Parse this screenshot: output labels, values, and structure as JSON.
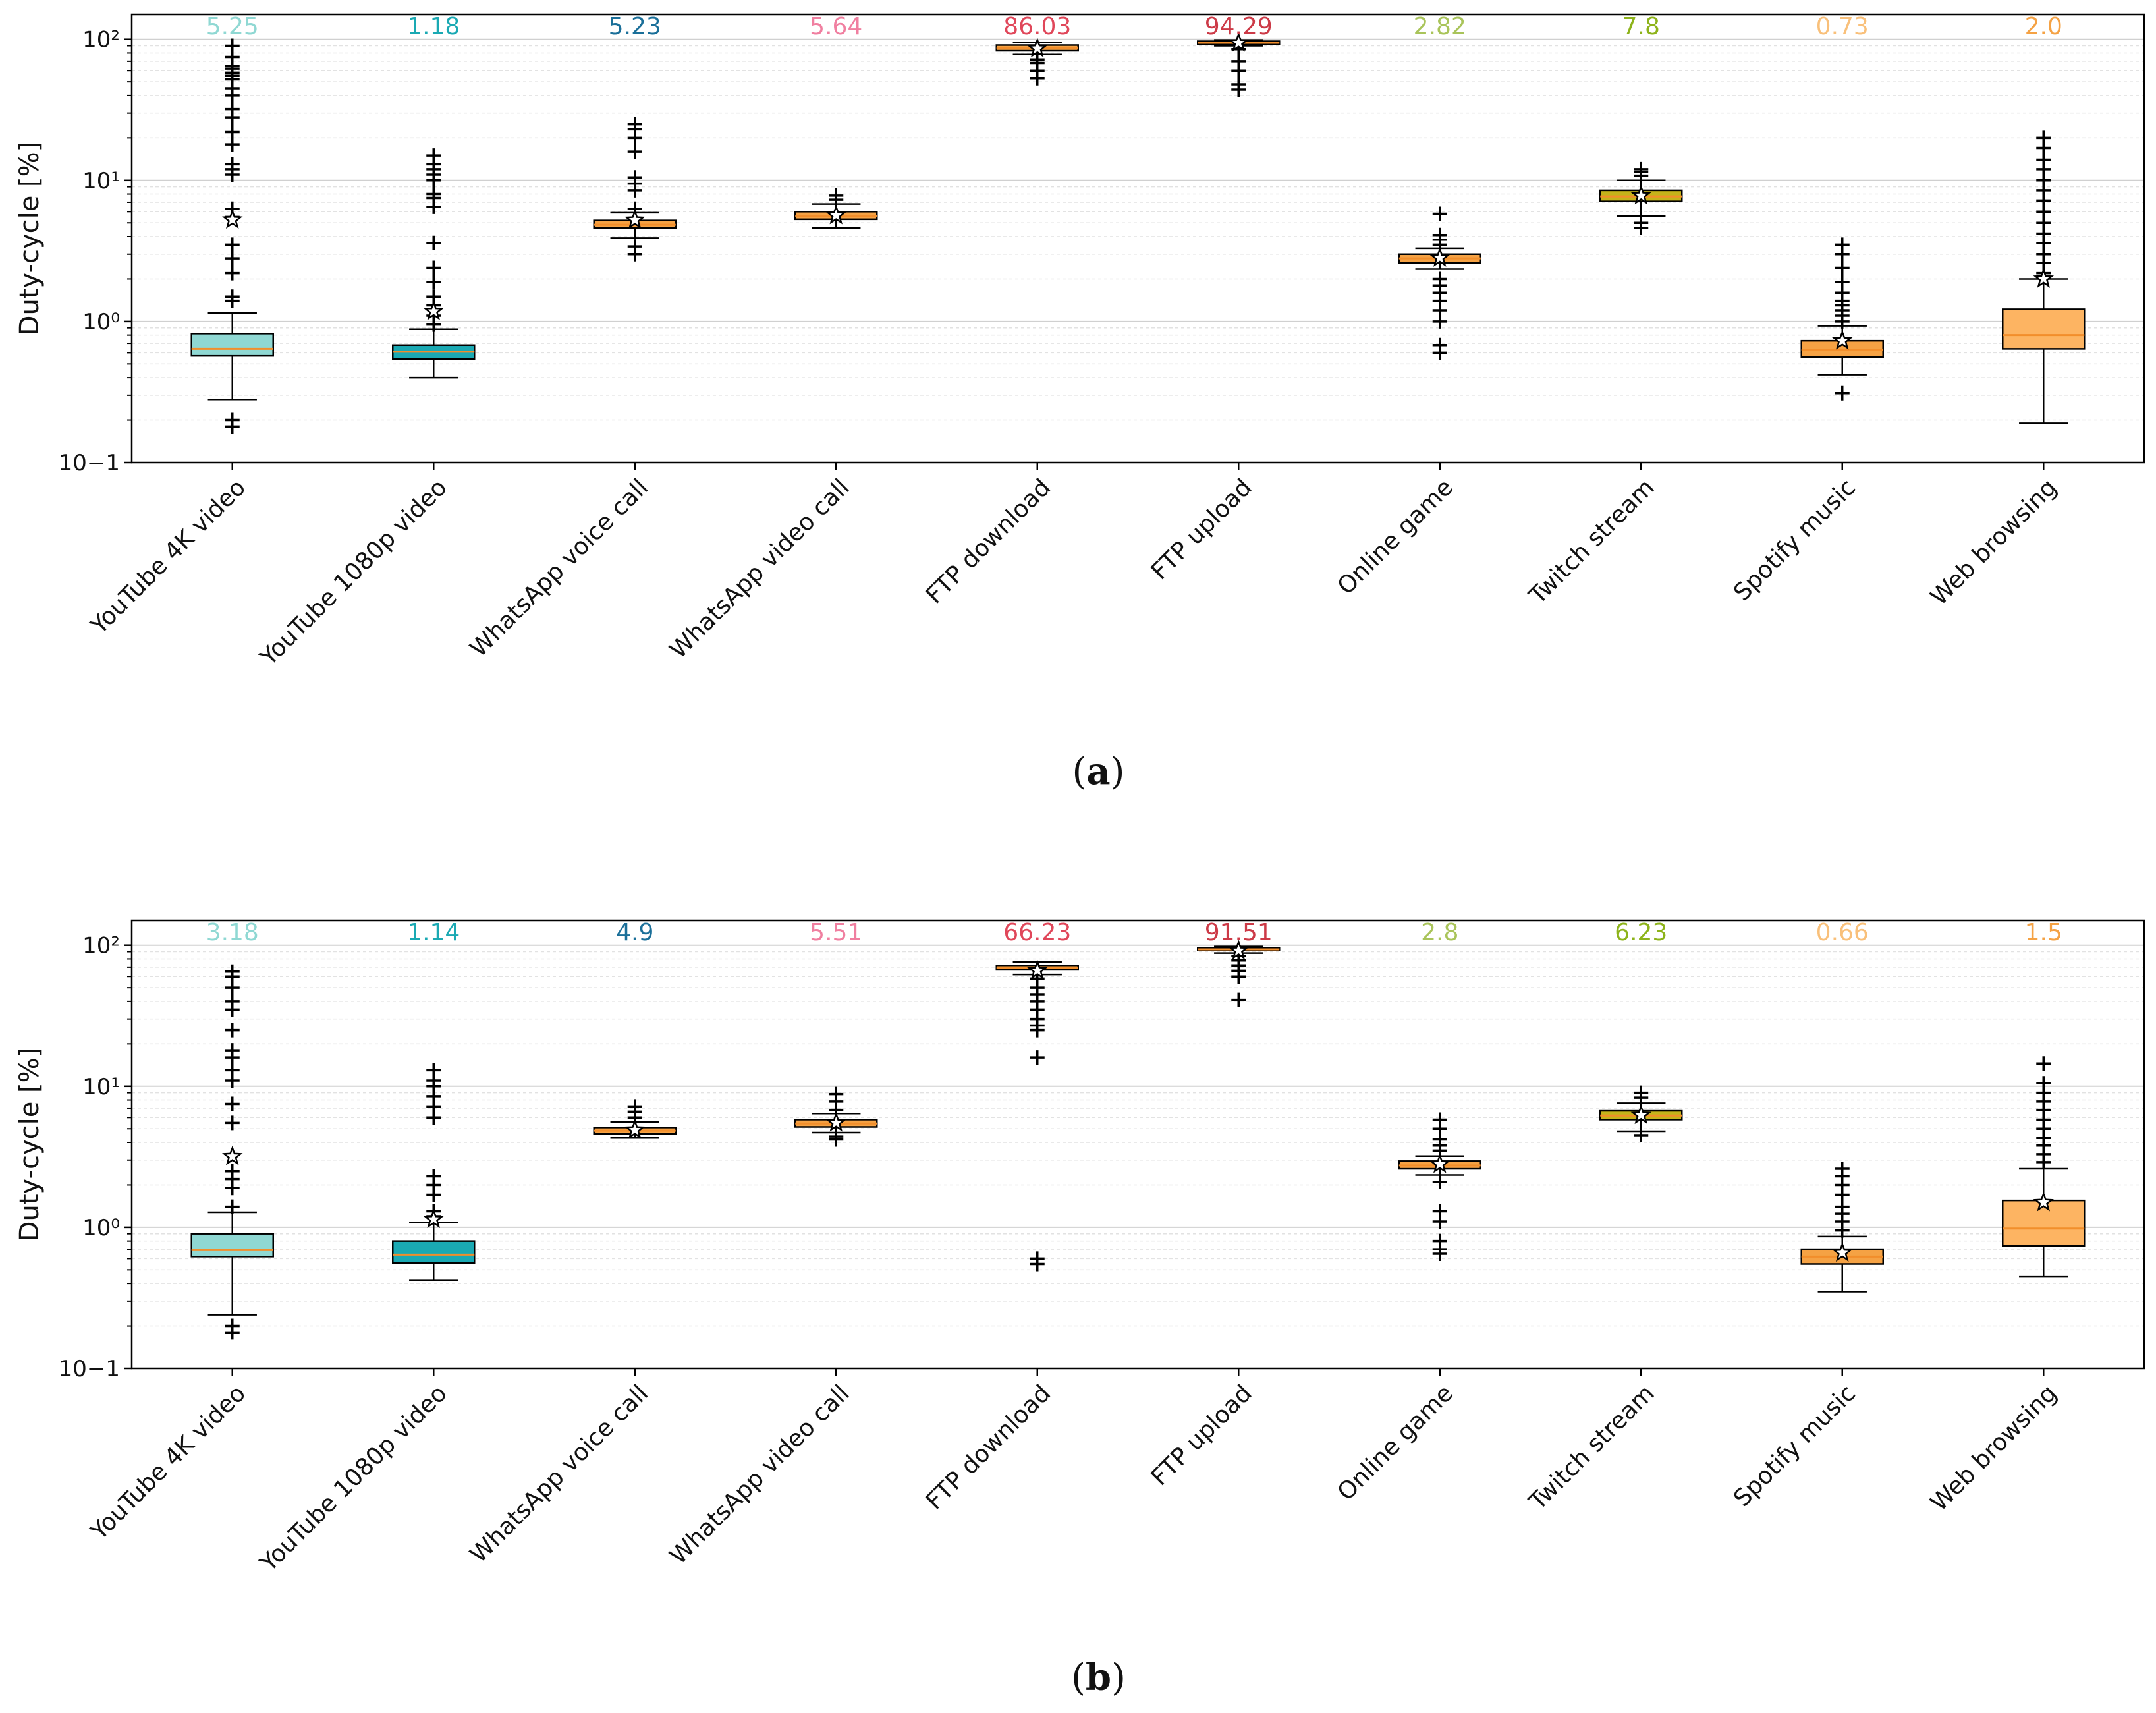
{
  "chart_data": [
    {
      "type": "box",
      "panel_label": "(a)",
      "caption_letter": "a",
      "ylabel": "Duty-cycle [%]",
      "yscale": "log",
      "ylim": [
        0.1,
        150
      ],
      "yticks": [
        {
          "value": 0.1,
          "label": "10−1"
        },
        {
          "value": 1,
          "label": "10⁰"
        },
        {
          "value": 10,
          "label": "10¹"
        },
        {
          "value": 100,
          "label": "10²"
        }
      ],
      "grid": "y (major and minor, dashed)",
      "categories": [
        {
          "name": "YouTube 4K video",
          "color": "#8fd8d3",
          "mean": 5.25,
          "mean_label": "5.25",
          "whisker_low": 0.28,
          "q1": 0.57,
          "median": 0.64,
          "q3": 0.82,
          "whisker_high": 1.15,
          "outliers_low": [
            0.2,
            0.18
          ],
          "outliers_high": [
            1.4,
            1.5,
            2.2,
            2.8,
            3.5,
            5.5,
            6.3,
            11,
            12,
            13,
            18,
            22,
            28,
            32,
            40,
            45,
            52,
            55,
            58,
            62,
            65,
            75,
            90
          ]
        },
        {
          "name": "YouTube 1080p video",
          "color": "#1aa9b3",
          "mean": 1.18,
          "mean_label": "1.18",
          "whisker_low": 0.4,
          "q1": 0.54,
          "median": 0.61,
          "q3": 0.68,
          "whisker_high": 0.88,
          "outliers_low": [],
          "outliers_high": [
            0.95,
            1.1,
            1.3,
            1.5,
            1.9,
            2.4,
            3.6,
            6.5,
            7.5,
            8,
            10,
            11,
            12,
            13,
            15
          ]
        },
        {
          "name": "WhatsApp voice call",
          "color": "#f5a244",
          "mean": 5.23,
          "mean_label": "5.23",
          "whisker_low": 3.9,
          "q1": 4.6,
          "median": 4.85,
          "q3": 5.2,
          "whisker_high": 5.9,
          "outliers_low": [
            3.0,
            3.4
          ],
          "outliers_high": [
            6.3,
            8.5,
            9.5,
            10.5,
            16,
            20,
            23,
            25
          ]
        },
        {
          "name": "WhatsApp video call",
          "color": "#f5a244",
          "mean": 5.64,
          "mean_label": "5.64",
          "whisker_low": 4.6,
          "q1": 5.3,
          "median": 5.6,
          "q3": 6.0,
          "whisker_high": 6.8,
          "outliers_low": [],
          "outliers_high": [
            7.3,
            7.8
          ]
        },
        {
          "name": "FTP download",
          "color": "#f5a244",
          "mean": 86.03,
          "mean_label": "86.03",
          "whisker_low": 78,
          "q1": 83,
          "median": 87,
          "q3": 91,
          "whisker_high": 95,
          "outliers_low": [
            72,
            68,
            60,
            53
          ],
          "outliers_high": []
        },
        {
          "name": "FTP upload",
          "color": "#f5a244",
          "mean": 94.29,
          "mean_label": "94.29",
          "whisker_low": 90,
          "q1": 92,
          "median": 94.5,
          "q3": 97,
          "whisker_high": 99,
          "outliers_low": [
            85,
            70,
            60,
            48,
            44
          ],
          "outliers_high": []
        },
        {
          "name": "Online game",
          "color": "#f5a244",
          "mean": 2.82,
          "mean_label": "2.82",
          "whisker_low": 2.35,
          "q1": 2.6,
          "median": 2.8,
          "q3": 3.0,
          "whisker_high": 3.3,
          "outliers_low": [
            2.0,
            1.8,
            1.6,
            1.4,
            1.2,
            1.0,
            0.68,
            0.6
          ],
          "outliers_high": [
            3.5,
            3.8,
            4.1,
            5.8
          ]
        },
        {
          "name": "Twitch stream",
          "color": "#c4b31a",
          "mean": 7.8,
          "mean_label": "7.8",
          "whisker_low": 5.6,
          "q1": 7.1,
          "median": 7.7,
          "q3": 8.5,
          "whisker_high": 10,
          "outliers_low": [
            5.0,
            4.6
          ],
          "outliers_high": [
            10.8,
            11.5,
            12
          ]
        },
        {
          "name": "Spotify music",
          "color": "#f5a244",
          "mean": 0.73,
          "mean_label": "0.73",
          "whisker_low": 0.42,
          "q1": 0.56,
          "median": 0.63,
          "q3": 0.73,
          "whisker_high": 0.93,
          "outliers_low": [
            0.31
          ],
          "outliers_high": [
            1.0,
            1.1,
            1.2,
            1.3,
            1.4,
            1.6,
            1.9,
            2.4,
            3.0,
            3.5
          ]
        },
        {
          "name": "Web browsing",
          "color": "#fdb462",
          "mean": 2.0,
          "mean_label": "2.0",
          "whisker_low": 0.19,
          "q1": 0.64,
          "median": 0.8,
          "q3": 1.22,
          "whisker_high": 2.0,
          "outliers_low": [],
          "outliers_high": [
            2.2,
            2.6,
            3.0,
            3.6,
            4.2,
            5.0,
            6.0,
            7.2,
            8.5,
            10,
            12,
            14,
            17,
            20
          ]
        }
      ],
      "mean_label_colors": [
        "#8fd8d3",
        "#1aa9b3",
        "#1a6f99",
        "#f07fa0",
        "#e0475a",
        "#cc3a47",
        "#a9c45a",
        "#8db31a",
        "#f9c07a",
        "#f5a244"
      ]
    },
    {
      "type": "box",
      "panel_label": "(b)",
      "caption_letter": "b",
      "ylabel": "Duty-cycle [%]",
      "yscale": "log",
      "ylim": [
        0.1,
        150
      ],
      "yticks": [
        {
          "value": 0.1,
          "label": "10−1"
        },
        {
          "value": 1,
          "label": "10⁰"
        },
        {
          "value": 10,
          "label": "10¹"
        },
        {
          "value": 100,
          "label": "10²"
        }
      ],
      "grid": "y (major and minor, dashed)",
      "categories": [
        {
          "name": "YouTube 4K video",
          "color": "#8fd8d3",
          "mean": 3.18,
          "mean_label": "3.18",
          "whisker_low": 0.24,
          "q1": 0.62,
          "median": 0.69,
          "q3": 0.9,
          "whisker_high": 1.28,
          "outliers_low": [
            0.2,
            0.18
          ],
          "outliers_high": [
            1.4,
            1.9,
            2.2,
            2.5,
            5.5,
            7.5,
            11,
            13,
            16,
            18,
            25,
            35,
            40,
            50,
            60,
            65
          ]
        },
        {
          "name": "YouTube 1080p video",
          "color": "#1aa9b3",
          "mean": 1.14,
          "mean_label": "1.14",
          "whisker_low": 0.42,
          "q1": 0.56,
          "median": 0.64,
          "q3": 0.8,
          "whisker_high": 1.08,
          "outliers_low": [],
          "outliers_high": [
            1.2,
            1.3,
            1.7,
            2.0,
            2.3,
            6.0,
            7.2,
            8.5,
            10,
            11,
            13
          ]
        },
        {
          "name": "WhatsApp voice call",
          "color": "#f5a244",
          "mean": 4.9,
          "mean_label": "4.9",
          "whisker_low": 4.3,
          "q1": 4.6,
          "median": 4.85,
          "q3": 5.1,
          "whisker_high": 5.6,
          "outliers_low": [],
          "outliers_high": [
            6.0,
            6.6,
            7.2
          ]
        },
        {
          "name": "WhatsApp video call",
          "color": "#f5a244",
          "mean": 5.51,
          "mean_label": "5.51",
          "whisker_low": 4.7,
          "q1": 5.15,
          "median": 5.45,
          "q3": 5.8,
          "whisker_high": 6.4,
          "outliers_low": [
            4.4,
            4.2
          ],
          "outliers_high": [
            6.8,
            7.8,
            8.8
          ]
        },
        {
          "name": "FTP download",
          "color": "#f5a244",
          "mean": 66.23,
          "mean_label": "66.23",
          "whisker_low": 62,
          "q1": 67,
          "median": 69,
          "q3": 72,
          "whisker_high": 76,
          "outliers_low": [
            58,
            50,
            45,
            40,
            35,
            30,
            27,
            25,
            16,
            0.6,
            0.55
          ],
          "outliers_high": []
        },
        {
          "name": "FTP upload",
          "color": "#f5a244",
          "mean": 91.51,
          "mean_label": "91.51",
          "whisker_low": 88,
          "q1": 92,
          "median": 93.5,
          "q3": 96,
          "whisker_high": 98,
          "outliers_low": [
            84,
            78,
            72,
            66,
            60,
            41
          ],
          "outliers_high": []
        },
        {
          "name": "Online game",
          "color": "#f5a244",
          "mean": 2.8,
          "mean_label": "2.8",
          "whisker_low": 2.35,
          "q1": 2.6,
          "median": 2.75,
          "q3": 2.95,
          "whisker_high": 3.2,
          "outliers_low": [
            2.1,
            1.3,
            1.1,
            0.8,
            0.7,
            0.65
          ],
          "outliers_high": [
            3.5,
            3.8,
            4.2,
            5.0,
            5.8
          ]
        },
        {
          "name": "Twitch stream",
          "color": "#c4b31a",
          "mean": 6.23,
          "mean_label": "6.23",
          "whisker_low": 4.8,
          "q1": 5.8,
          "median": 6.2,
          "q3": 6.7,
          "whisker_high": 7.6,
          "outliers_low": [
            4.5
          ],
          "outliers_high": [
            8.3,
            9.0
          ]
        },
        {
          "name": "Spotify music",
          "color": "#f5a244",
          "mean": 0.66,
          "mean_label": "0.66",
          "whisker_low": 0.35,
          "q1": 0.55,
          "median": 0.62,
          "q3": 0.7,
          "whisker_high": 0.86,
          "outliers_low": [],
          "outliers_high": [
            0.95,
            1.1,
            1.25,
            1.4,
            1.7,
            2.0,
            2.3,
            2.6
          ]
        },
        {
          "name": "Web browsing",
          "color": "#fdb462",
          "mean": 1.5,
          "mean_label": "1.5",
          "whisker_low": 0.45,
          "q1": 0.74,
          "median": 0.98,
          "q3": 1.55,
          "whisker_high": 2.6,
          "outliers_low": [],
          "outliers_high": [
            2.9,
            3.3,
            3.8,
            4.3,
            5.0,
            5.8,
            6.8,
            7.8,
            9.0,
            10.5,
            14.5
          ]
        }
      ],
      "mean_label_colors": [
        "#8fd8d3",
        "#1aa9b3",
        "#1a6f99",
        "#f07fa0",
        "#e0475a",
        "#cc3a47",
        "#a9c45a",
        "#8db31a",
        "#f9c07a",
        "#f5a244"
      ]
    }
  ]
}
